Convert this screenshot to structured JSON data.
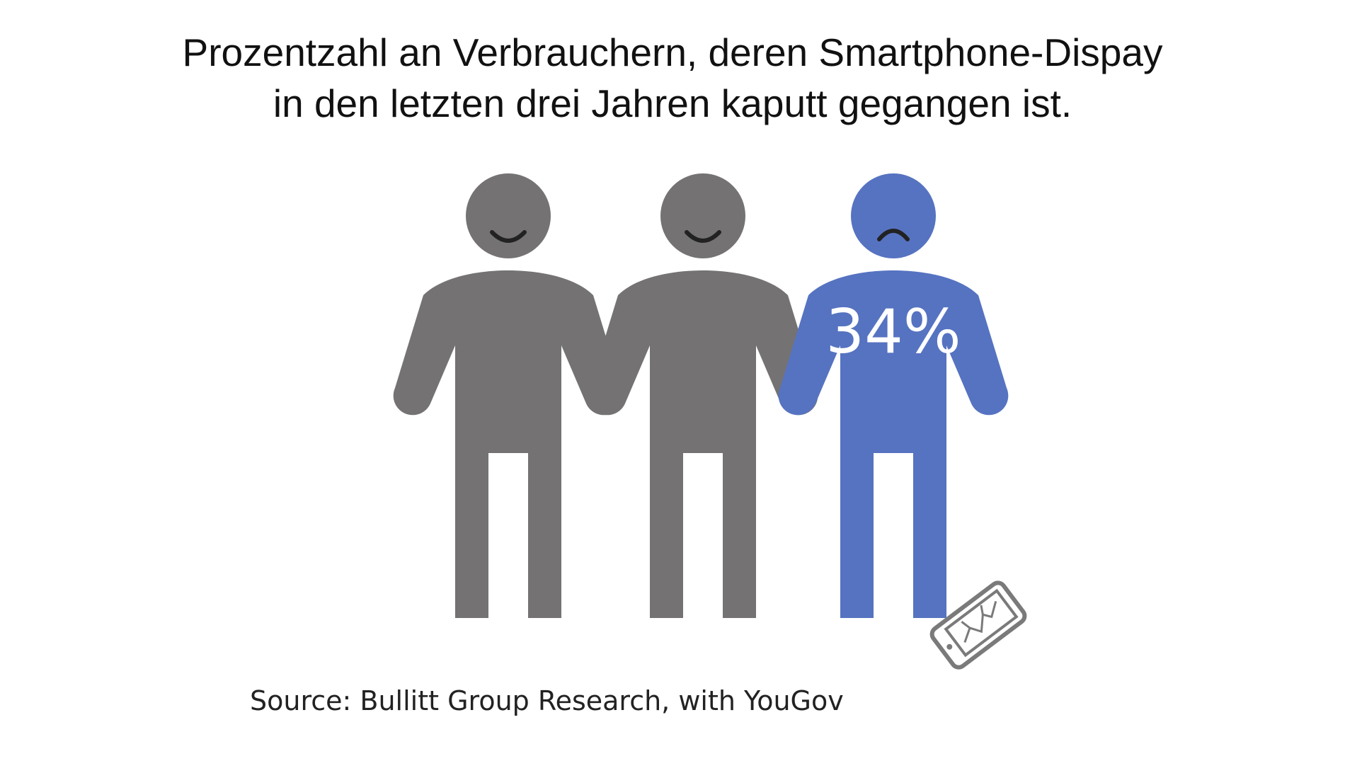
{
  "title": {
    "line1": "Prozentzahl an Verbrauchern, deren Smartphone-Dispay",
    "line2": "in den letzten drei Jahren kaputt gegangen ist."
  },
  "chart_data": {
    "type": "pictogram",
    "value_percent": 34,
    "value_label": "34%",
    "figures_total": 3,
    "figures_highlighted": 1,
    "colors": {
      "neutral": "#747272",
      "highlight": "#5673c1",
      "face": "#222222",
      "phone": "#7a7a7a"
    },
    "icons": [
      "happy-person-icon",
      "happy-person-icon",
      "sad-person-icon",
      "broken-phone-icon"
    ]
  },
  "source": "Source: Bullitt Group Research, with YouGov"
}
